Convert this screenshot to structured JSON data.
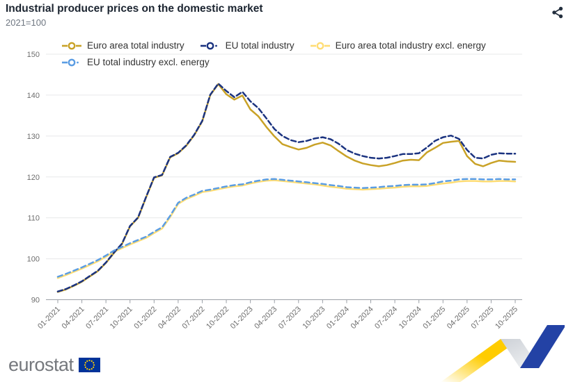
{
  "header": {
    "title": "Industrial producer prices on the domestic market",
    "subtitle": "2021=100"
  },
  "icons": {
    "share": "share-icon",
    "eu_flag": "eu-flag-icon",
    "legend_marker": "dash-circle-dash"
  },
  "footer": {
    "brand": "eurostat"
  },
  "chart_data": {
    "type": "line",
    "title": "Industrial producer prices on the domestic market",
    "subtitle": "2021=100",
    "xlabel": "",
    "ylabel": "",
    "grid": true,
    "legend_position": "top",
    "ylim": [
      90,
      150
    ],
    "y_ticks": [
      90,
      100,
      110,
      120,
      130,
      140,
      150
    ],
    "n_points": 58,
    "points_per_tick": 3,
    "x_start": "01-2021",
    "x_end": "10-2025",
    "x_tick_labels": [
      "01-2021",
      "04-2021",
      "07-2021",
      "10-2021",
      "01-2022",
      "04-2022",
      "07-2022",
      "10-2022",
      "01-2023",
      "04-2023",
      "07-2023",
      "10-2023",
      "01-2024",
      "04-2024",
      "07-2024",
      "10-2024",
      "01-2025",
      "04-2025",
      "07-2025",
      "10-2025"
    ],
    "axis_color": "#9a9fa6",
    "grid_color": "#e7e8ea",
    "series": [
      {
        "name": "Euro area total industry",
        "color": "#C9A227",
        "dash": null,
        "values": [
          91.9,
          92.5,
          93.4,
          94.4,
          95.7,
          97.0,
          99.0,
          101.4,
          103.6,
          107.9,
          110.0,
          115.0,
          119.8,
          120.4,
          124.8,
          125.8,
          127.6,
          130.2,
          133.6,
          140.0,
          142.7,
          140.2,
          138.9,
          139.9,
          136.5,
          134.8,
          132.2,
          129.9,
          128.0,
          127.3,
          126.7,
          127.1,
          127.9,
          128.4,
          127.7,
          126.3,
          125.0,
          124.0,
          123.3,
          122.9,
          122.6,
          122.9,
          123.4,
          124.0,
          124.2,
          124.1,
          126.0,
          127.1,
          128.3,
          128.6,
          128.8,
          125.1,
          123.2,
          122.6,
          123.4,
          124.0,
          123.8,
          123.7
        ]
      },
      {
        "name": "EU total industry",
        "color": "#1B3380",
        "dash": "7,4",
        "values": [
          92.0,
          92.6,
          93.5,
          94.5,
          95.8,
          97.1,
          99.1,
          101.5,
          103.7,
          108.0,
          110.1,
          115.1,
          119.9,
          120.5,
          124.9,
          125.9,
          127.7,
          130.3,
          133.7,
          140.1,
          142.8,
          141.0,
          139.5,
          140.8,
          138.5,
          136.8,
          134.3,
          131.7,
          130.0,
          129.0,
          128.5,
          128.8,
          129.4,
          129.7,
          129.2,
          128.1,
          126.6,
          125.7,
          125.1,
          124.7,
          124.5,
          124.7,
          125.1,
          125.6,
          125.6,
          125.8,
          127.2,
          128.8,
          129.7,
          130.1,
          129.3,
          126.6,
          124.7,
          124.5,
          125.4,
          125.8,
          125.7,
          125.7
        ]
      },
      {
        "name": "Euro area total industry excl. energy",
        "color": "#FFDD75",
        "dash": null,
        "values": [
          95.3,
          96.0,
          96.8,
          97.6,
          98.5,
          99.4,
          100.5,
          101.7,
          102.6,
          103.5,
          104.3,
          105.1,
          106.3,
          107.4,
          110.2,
          113.4,
          114.6,
          115.4,
          116.3,
          116.6,
          117.0,
          117.4,
          117.7,
          117.9,
          118.4,
          118.8,
          119.1,
          119.2,
          119.0,
          118.8,
          118.6,
          118.4,
          118.2,
          117.9,
          117.6,
          117.4,
          117.1,
          117.0,
          116.9,
          117.0,
          117.1,
          117.3,
          117.4,
          117.6,
          117.7,
          117.7,
          117.8,
          118.1,
          118.4,
          118.6,
          118.9,
          119.0,
          119.0,
          118.9,
          118.9,
          119.0,
          119.0,
          118.9
        ]
      },
      {
        "name": "EU total industry excl. energy",
        "color": "#5B9DE3",
        "dash": "7,5",
        "values": [
          95.6,
          96.3,
          97.1,
          97.9,
          98.8,
          99.7,
          100.8,
          102.0,
          102.9,
          103.8,
          104.6,
          105.4,
          106.6,
          107.7,
          110.5,
          113.7,
          114.9,
          115.7,
          116.6,
          116.9,
          117.3,
          117.7,
          118.0,
          118.2,
          118.7,
          119.1,
          119.4,
          119.5,
          119.3,
          119.1,
          118.9,
          118.7,
          118.5,
          118.3,
          118.0,
          117.8,
          117.5,
          117.4,
          117.3,
          117.4,
          117.5,
          117.7,
          117.8,
          118.0,
          118.1,
          118.1,
          118.2,
          118.5,
          118.9,
          119.1,
          119.4,
          119.5,
          119.5,
          119.4,
          119.4,
          119.5,
          119.4,
          119.4
        ]
      }
    ]
  }
}
